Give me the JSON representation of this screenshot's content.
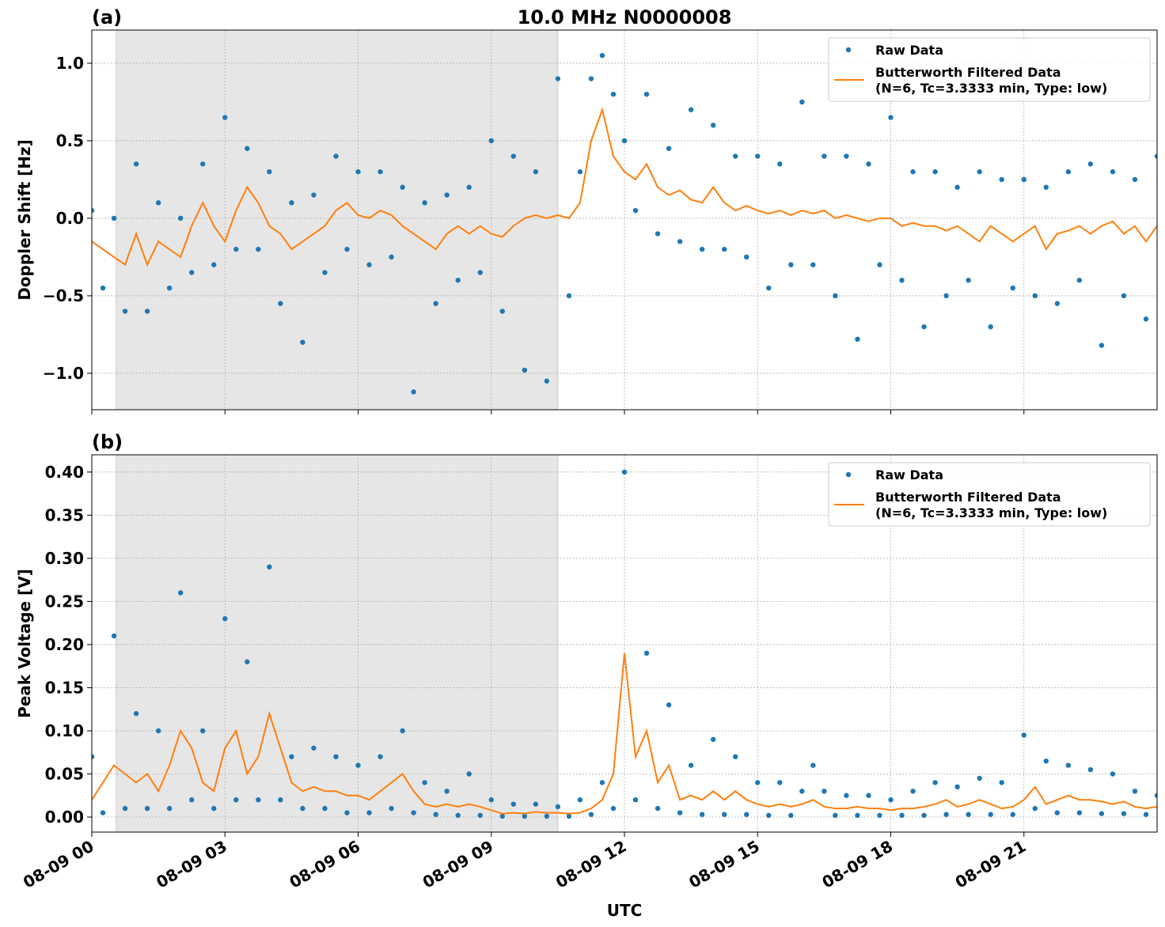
{
  "chart_data": [
    {
      "type": "line",
      "panel_label": "(a)",
      "title": "10.0 MHz N0000008",
      "ylabel": "Doppler Shift [Hz]",
      "x": [
        0,
        0.25,
        0.5,
        0.75,
        1,
        1.25,
        1.5,
        1.75,
        2,
        2.25,
        2.5,
        2.75,
        3,
        3.25,
        3.5,
        3.75,
        4,
        4.25,
        4.5,
        4.75,
        5,
        5.25,
        5.5,
        5.75,
        6,
        6.25,
        6.5,
        6.75,
        7,
        7.25,
        7.5,
        7.75,
        8,
        8.25,
        8.5,
        8.75,
        9,
        9.25,
        9.5,
        9.75,
        10,
        10.25,
        10.5,
        10.75,
        11,
        11.25,
        11.5,
        11.75,
        12,
        12.25,
        12.5,
        12.75,
        13,
        13.25,
        13.5,
        13.75,
        14,
        14.25,
        14.5,
        14.75,
        15,
        15.25,
        15.5,
        15.75,
        16,
        16.25,
        16.5,
        16.75,
        17,
        17.25,
        17.5,
        17.75,
        18,
        18.25,
        18.5,
        18.75,
        19,
        19.25,
        19.5,
        19.75,
        20,
        20.25,
        20.5,
        20.75,
        21,
        21.25,
        21.5,
        21.75,
        22,
        22.25,
        22.5,
        22.75,
        23,
        23.25,
        23.5,
        23.75,
        24
      ],
      "xlim": [
        0,
        24
      ],
      "xticks": [
        0,
        3,
        6,
        9,
        12,
        15,
        18,
        21
      ],
      "ylim": [
        -1.235,
        1.214
      ],
      "yticks": [
        {
          "value": -1.0,
          "label": "−1.0"
        },
        {
          "value": -0.5,
          "label": "−0.5"
        },
        {
          "value": 0,
          "label": "0.0"
        },
        {
          "value": 0.5,
          "label": "0.5"
        },
        {
          "value": 1.0,
          "label": "1.0"
        }
      ],
      "grid": true,
      "legend": "upper right",
      "shaded_span": [
        0.55,
        10.5
      ],
      "series": [
        {
          "name": "Raw Data",
          "color": "#1f77b4",
          "style": "dots",
          "values": [
            0.05,
            -0.45,
            0.0,
            -0.6,
            0.35,
            -0.6,
            0.1,
            -0.45,
            0.0,
            -0.35,
            0.35,
            -0.3,
            0.65,
            -0.2,
            0.45,
            -0.2,
            0.3,
            -0.55,
            0.1,
            -0.8,
            0.15,
            -0.35,
            0.4,
            -0.2,
            0.3,
            -0.3,
            0.3,
            -0.25,
            0.2,
            -1.12,
            0.1,
            -0.55,
            0.15,
            -0.4,
            0.2,
            -0.35,
            0.5,
            -0.6,
            0.4,
            -0.98,
            0.3,
            -1.05,
            0.9,
            -0.5,
            0.3,
            0.9,
            1.05,
            0.8,
            0.5,
            0.05,
            0.8,
            -0.1,
            0.45,
            -0.15,
            0.7,
            -0.2,
            0.6,
            -0.2,
            0.4,
            -0.25,
            0.4,
            -0.45,
            0.35,
            -0.3,
            0.75,
            -0.3,
            0.4,
            -0.5,
            0.4,
            -0.78,
            0.35,
            -0.3,
            0.65,
            -0.4,
            0.3,
            -0.7,
            0.3,
            -0.5,
            0.2,
            -0.4,
            0.3,
            -0.7,
            0.25,
            -0.45,
            0.25,
            -0.5,
            0.2,
            -0.55,
            0.3,
            -0.4,
            0.35,
            -0.82,
            0.3,
            -0.5,
            0.25,
            -0.65,
            0.4
          ]
        },
        {
          "name": "Butterworth Filtered Data\n(N=6, Tc=3.3333 min, Type: low)",
          "color": "#ff7f0e",
          "style": "line",
          "values": [
            -0.15,
            -0.2,
            -0.25,
            -0.3,
            -0.1,
            -0.3,
            -0.15,
            -0.2,
            -0.25,
            -0.05,
            0.1,
            -0.05,
            -0.15,
            0.05,
            0.2,
            0.1,
            -0.05,
            -0.1,
            -0.2,
            -0.15,
            -0.1,
            -0.05,
            0.05,
            0.1,
            0.02,
            0.0,
            0.05,
            0.02,
            -0.05,
            -0.1,
            -0.15,
            -0.2,
            -0.1,
            -0.05,
            -0.1,
            -0.05,
            -0.1,
            -0.12,
            -0.05,
            0.0,
            0.02,
            0.0,
            0.02,
            0.0,
            0.1,
            0.5,
            0.7,
            0.4,
            0.3,
            0.25,
            0.35,
            0.2,
            0.15,
            0.18,
            0.12,
            0.1,
            0.2,
            0.1,
            0.05,
            0.08,
            0.05,
            0.03,
            0.05,
            0.02,
            0.05,
            0.03,
            0.05,
            0.0,
            0.02,
            0.0,
            -0.02,
            0.0,
            0.0,
            -0.05,
            -0.03,
            -0.05,
            -0.05,
            -0.08,
            -0.05,
            -0.1,
            -0.15,
            -0.05,
            -0.1,
            -0.15,
            -0.1,
            -0.05,
            -0.2,
            -0.1,
            -0.08,
            -0.05,
            -0.1,
            -0.05,
            -0.02,
            -0.1,
            -0.05,
            -0.15,
            -0.05
          ]
        }
      ]
    },
    {
      "type": "line",
      "panel_label": "(b)",
      "ylabel": "Peak Voltage [V]",
      "xlabel": "UTC",
      "x": [
        0,
        0.25,
        0.5,
        0.75,
        1,
        1.25,
        1.5,
        1.75,
        2,
        2.25,
        2.5,
        2.75,
        3,
        3.25,
        3.5,
        3.75,
        4,
        4.25,
        4.5,
        4.75,
        5,
        5.25,
        5.5,
        5.75,
        6,
        6.25,
        6.5,
        6.75,
        7,
        7.25,
        7.5,
        7.75,
        8,
        8.25,
        8.5,
        8.75,
        9,
        9.25,
        9.5,
        9.75,
        10,
        10.25,
        10.5,
        10.75,
        11,
        11.25,
        11.5,
        11.75,
        12,
        12.25,
        12.5,
        12.75,
        13,
        13.25,
        13.5,
        13.75,
        14,
        14.25,
        14.5,
        14.75,
        15,
        15.25,
        15.5,
        15.75,
        16,
        16.25,
        16.5,
        16.75,
        17,
        17.25,
        17.5,
        17.75,
        18,
        18.25,
        18.5,
        18.75,
        19,
        19.25,
        19.5,
        19.75,
        20,
        20.25,
        20.5,
        20.75,
        21,
        21.25,
        21.5,
        21.75,
        22,
        22.25,
        22.5,
        22.75,
        23,
        23.25,
        23.5,
        23.75,
        24
      ],
      "xlim": [
        0,
        24
      ],
      "xticks": [
        {
          "value": 0,
          "label": "08-09 00"
        },
        {
          "value": 3,
          "label": "08-09 03"
        },
        {
          "value": 6,
          "label": "08-09 06"
        },
        {
          "value": 9,
          "label": "08-09 09"
        },
        {
          "value": 12,
          "label": "08-09 12"
        },
        {
          "value": 15,
          "label": "08-09 15"
        },
        {
          "value": 18,
          "label": "08-09 18"
        },
        {
          "value": 21,
          "label": "08-09 21"
        }
      ],
      "ylim": [
        -0.0174,
        0.42
      ],
      "yticks": [
        {
          "value": 0,
          "label": "0.00"
        },
        {
          "value": 0.05,
          "label": "0.05"
        },
        {
          "value": 0.1,
          "label": "0.10"
        },
        {
          "value": 0.15,
          "label": "0.15"
        },
        {
          "value": 0.2,
          "label": "0.20"
        },
        {
          "value": 0.25,
          "label": "0.25"
        },
        {
          "value": 0.3,
          "label": "0.30"
        },
        {
          "value": 0.35,
          "label": "0.35"
        },
        {
          "value": 0.4,
          "label": "0.40"
        }
      ],
      "grid": true,
      "legend": "upper right",
      "shaded_span": [
        0.55,
        10.5
      ],
      "series": [
        {
          "name": "Raw Data",
          "color": "#1f77b4",
          "style": "dots",
          "values": [
            0.07,
            0.005,
            0.21,
            0.01,
            0.12,
            0.01,
            0.1,
            0.01,
            0.26,
            0.02,
            0.1,
            0.01,
            0.23,
            0.02,
            0.18,
            0.02,
            0.29,
            0.02,
            0.07,
            0.01,
            0.08,
            0.01,
            0.07,
            0.005,
            0.06,
            0.005,
            0.07,
            0.01,
            0.1,
            0.005,
            0.04,
            0.003,
            0.03,
            0.002,
            0.05,
            0.002,
            0.02,
            0.001,
            0.015,
            0.001,
            0.015,
            0.001,
            0.012,
            0.001,
            0.02,
            0.003,
            0.04,
            0.01,
            0.4,
            0.02,
            0.19,
            0.01,
            0.13,
            0.005,
            0.06,
            0.003,
            0.09,
            0.003,
            0.07,
            0.003,
            0.04,
            0.002,
            0.04,
            0.002,
            0.03,
            0.06,
            0.03,
            0.002,
            0.025,
            0.002,
            0.025,
            0.002,
            0.02,
            0.002,
            0.03,
            0.002,
            0.04,
            0.003,
            0.035,
            0.003,
            0.045,
            0.003,
            0.04,
            0.003,
            0.095,
            0.01,
            0.065,
            0.005,
            0.06,
            0.005,
            0.055,
            0.004,
            0.05,
            0.004,
            0.03,
            0.003,
            0.025
          ]
        },
        {
          "name": "Butterworth Filtered Data\n(N=6, Tc=3.3333 min, Type: low)",
          "color": "#ff7f0e",
          "style": "line",
          "values": [
            0.02,
            0.04,
            0.06,
            0.05,
            0.04,
            0.05,
            0.03,
            0.06,
            0.1,
            0.08,
            0.04,
            0.03,
            0.08,
            0.1,
            0.05,
            0.07,
            0.12,
            0.08,
            0.04,
            0.03,
            0.035,
            0.03,
            0.03,
            0.025,
            0.025,
            0.02,
            0.03,
            0.04,
            0.05,
            0.03,
            0.015,
            0.012,
            0.015,
            0.012,
            0.015,
            0.012,
            0.008,
            0.004,
            0.005,
            0.004,
            0.006,
            0.005,
            0.005,
            0.004,
            0.005,
            0.01,
            0.02,
            0.05,
            0.19,
            0.07,
            0.1,
            0.04,
            0.06,
            0.02,
            0.025,
            0.02,
            0.03,
            0.02,
            0.03,
            0.02,
            0.015,
            0.012,
            0.015,
            0.012,
            0.015,
            0.02,
            0.012,
            0.01,
            0.01,
            0.012,
            0.01,
            0.01,
            0.008,
            0.01,
            0.01,
            0.012,
            0.015,
            0.02,
            0.012,
            0.015,
            0.02,
            0.015,
            0.01,
            0.012,
            0.02,
            0.035,
            0.015,
            0.02,
            0.025,
            0.02,
            0.02,
            0.018,
            0.015,
            0.018,
            0.012,
            0.01,
            0.012
          ]
        }
      ]
    }
  ]
}
